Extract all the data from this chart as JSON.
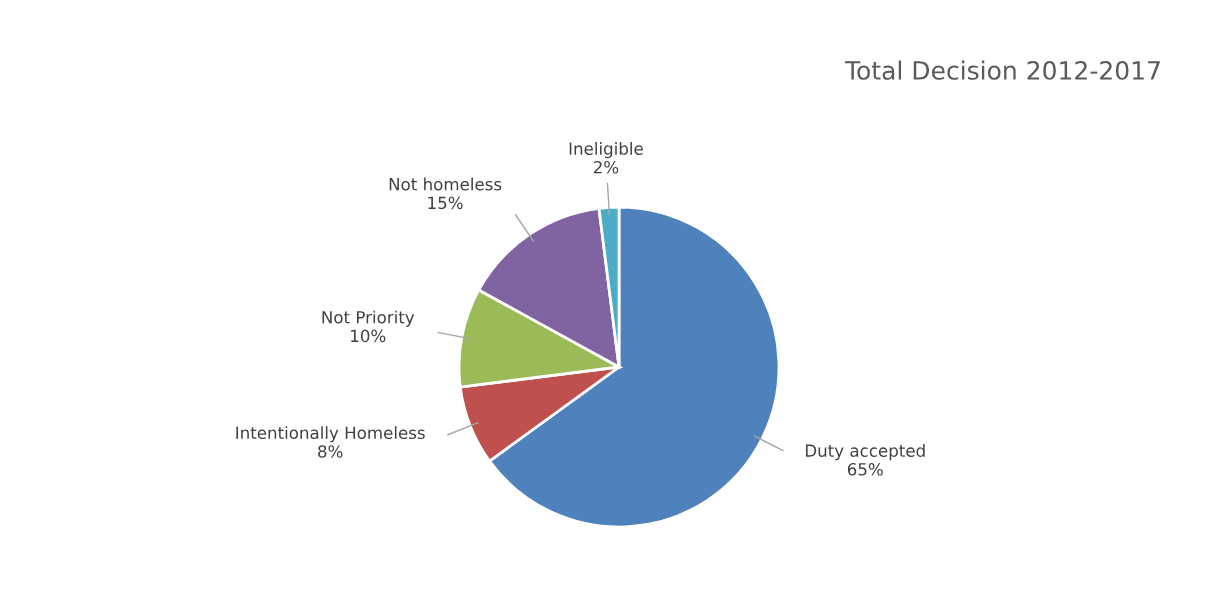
{
  "chart_data": {
    "type": "pie",
    "title": "Total Decision 2012-2017",
    "categories": [
      "Duty accepted",
      "Intentionally Homeless",
      "Not Priority",
      "Not homeless",
      "Ineligible"
    ],
    "values": [
      65,
      8,
      10,
      15,
      2
    ],
    "colors": [
      "#4f81bd",
      "#c0504d",
      "#9bbb59",
      "#8064a2",
      "#4bacc6"
    ],
    "value_labels": [
      "65%",
      "8%",
      "10%",
      "15%",
      "2%"
    ]
  }
}
